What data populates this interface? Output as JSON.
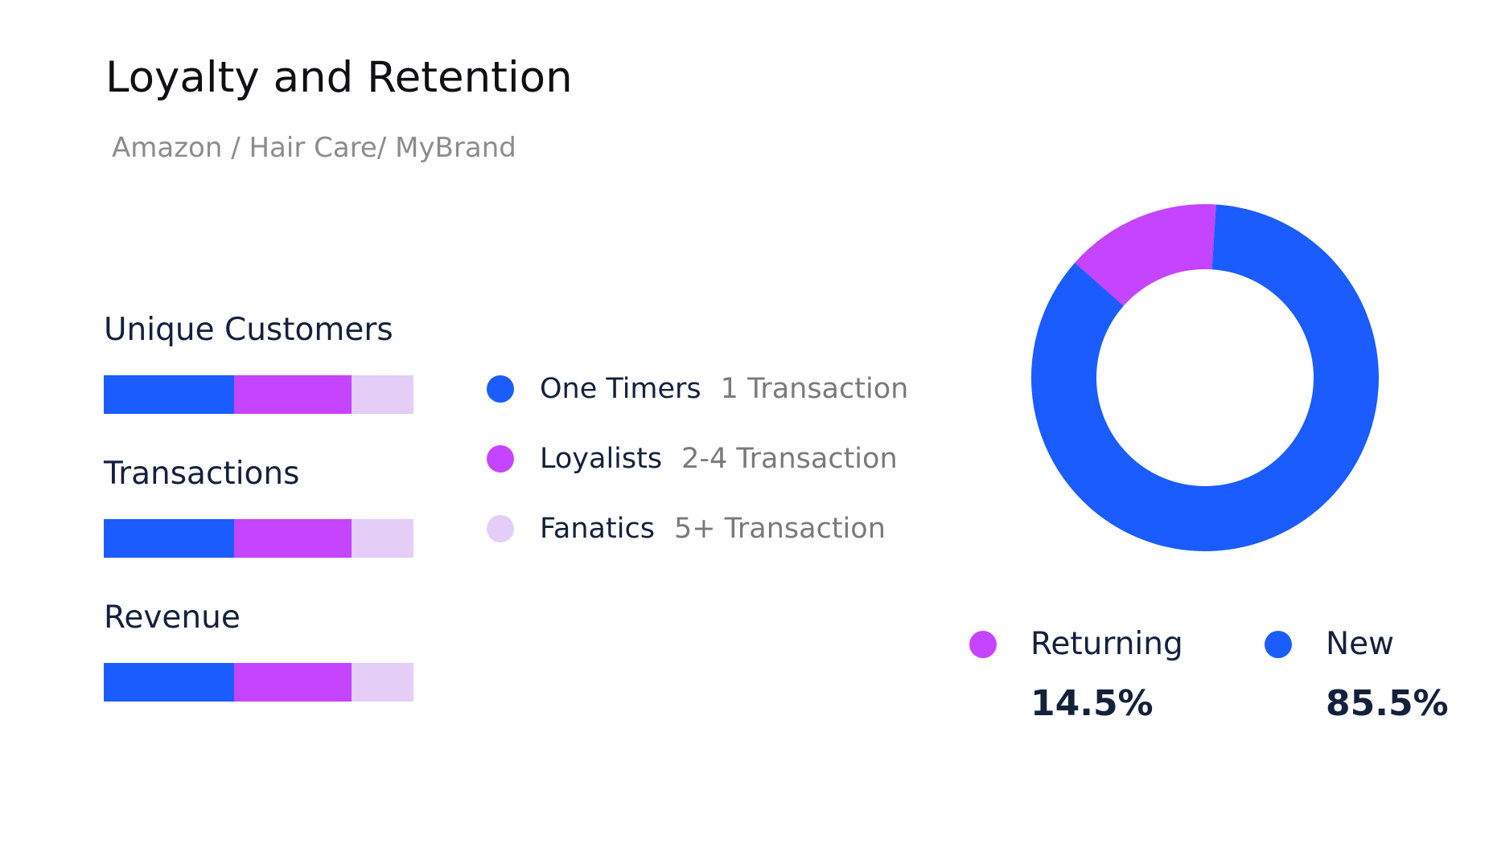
{
  "title": "Loyalty and Retention",
  "subtitle": "Amazon / Hair Care/ MyBrand",
  "colors": {
    "one_timers": "#1a5cff",
    "loyalists": "#c544ff",
    "fanatics": "#e4cdf7",
    "returning": "#c544ff",
    "new": "#1a5cff",
    "text": "#14213d",
    "muted": "#7a7a7a"
  },
  "segments_legend": [
    {
      "name": "One Timers",
      "desc": "1 Transaction"
    },
    {
      "name": "Loyalists",
      "desc": "2-4 Transaction"
    },
    {
      "name": "Fanatics",
      "desc": "5+ Transaction"
    }
  ],
  "pie_legend": [
    {
      "name": "Returning",
      "pct": "14.5%"
    },
    {
      "name": "New",
      "pct": "85.5%"
    }
  ],
  "chart_data": [
    {
      "type": "bar",
      "orientation": "horizontal-stacked-100",
      "categories": [
        "Unique Customers",
        "Transactions",
        "Revenue"
      ],
      "series": [
        {
          "name": "One Timers",
          "values": [
            42,
            42,
            42
          ]
        },
        {
          "name": "Loyalists",
          "values": [
            38,
            38,
            38
          ]
        },
        {
          "name": "Fanatics",
          "values": [
            20,
            20,
            20
          ]
        }
      ]
    },
    {
      "type": "pie",
      "style": "donut",
      "labels": [
        "Returning",
        "New"
      ],
      "values": [
        14.5,
        85.5
      ]
    }
  ]
}
